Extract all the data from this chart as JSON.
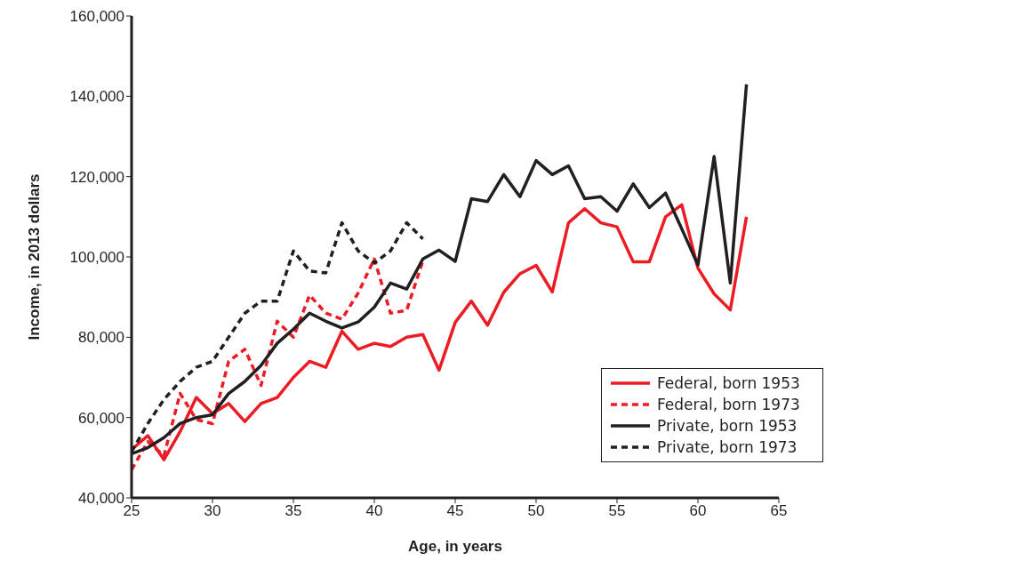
{
  "chart_data": {
    "type": "line",
    "xlabel": "Age, in years",
    "ylabel": "Income, in 2013 dollars",
    "xlim": [
      25,
      65
    ],
    "xticks": [
      25,
      30,
      35,
      40,
      45,
      50,
      55,
      60,
      65
    ],
    "ylim": [
      40000,
      160000
    ],
    "yticks": [
      {
        "value": 40000,
        "label": "40,000"
      },
      {
        "value": 60000,
        "label": "60,000"
      },
      {
        "value": 80000,
        "label": "80,000"
      },
      {
        "value": 100000,
        "label": "100,000"
      },
      {
        "value": 120000,
        "label": "120,000"
      },
      {
        "value": 140000,
        "label": "140,000"
      },
      {
        "value": 160000,
        "label": "160,000"
      }
    ],
    "grid": false,
    "legend": "bottom right",
    "marker": "none",
    "series": [
      {
        "name": "Federal, born 1953",
        "color": "#ed1c24",
        "line_style": "solid",
        "x": [
          25,
          26,
          27,
          28,
          29,
          30,
          31,
          32,
          33,
          34,
          35,
          36,
          37,
          38,
          39,
          40,
          41,
          42,
          43,
          44,
          45,
          46,
          47,
          48,
          49,
          50,
          51,
          52,
          53,
          54,
          55,
          56,
          57,
          58,
          59,
          60,
          61,
          62,
          63
        ],
        "values": [
          52000,
          55500,
          49500,
          56500,
          65000,
          61000,
          63500,
          59000,
          63500,
          65000,
          70000,
          74000,
          72500,
          81500,
          77000,
          78500,
          77700,
          80000,
          80700,
          71800,
          83700,
          89000,
          83000,
          91200,
          95800,
          97900,
          91300,
          108500,
          112000,
          108500,
          107500,
          98800,
          98800,
          110000,
          113000,
          97200,
          90800,
          86800,
          110000
        ]
      },
      {
        "name": "Federal, born 1973",
        "color": "#ed1c24",
        "line_style": "dashed",
        "x": [
          25,
          26,
          27,
          28,
          29,
          30,
          31,
          32,
          33,
          34,
          35,
          36,
          37,
          38,
          39,
          40,
          41,
          42,
          43
        ],
        "values": [
          47000,
          54000,
          50500,
          66000,
          59500,
          58500,
          74000,
          77000,
          68000,
          84000,
          80000,
          90500,
          86000,
          84500,
          91000,
          99500,
          86000,
          86700,
          99000
        ]
      },
      {
        "name": "Private, born 1953",
        "color": "#231f20",
        "line_style": "solid",
        "x": [
          25,
          26,
          27,
          28,
          29,
          30,
          31,
          32,
          33,
          34,
          35,
          36,
          37,
          38,
          39,
          40,
          41,
          42,
          43,
          44,
          45,
          46,
          47,
          48,
          49,
          50,
          51,
          52,
          53,
          54,
          55,
          56,
          57,
          58,
          59,
          60,
          61,
          62,
          63
        ],
        "values": [
          51000,
          52500,
          55000,
          58500,
          60000,
          60700,
          66000,
          69000,
          73000,
          78500,
          82000,
          86000,
          84000,
          82300,
          83800,
          87500,
          93500,
          92000,
          99500,
          101700,
          98900,
          114500,
          113800,
          120500,
          115000,
          124000,
          120500,
          122700,
          114500,
          115000,
          111400,
          118200,
          112300,
          115900,
          107000,
          98000,
          125000,
          93500,
          143000
        ]
      },
      {
        "name": "Private, born 1973",
        "color": "#231f20",
        "line_style": "dashed",
        "x": [
          25,
          26,
          27,
          28,
          29,
          30,
          31,
          32,
          33,
          34,
          35,
          36,
          37,
          38,
          39,
          40,
          41,
          42,
          43
        ],
        "values": [
          51500,
          58500,
          64500,
          69000,
          72500,
          74000,
          80000,
          86000,
          89000,
          89000,
          101500,
          96500,
          96000,
          108500,
          101500,
          98500,
          101500,
          108500,
          104500
        ]
      }
    ]
  }
}
